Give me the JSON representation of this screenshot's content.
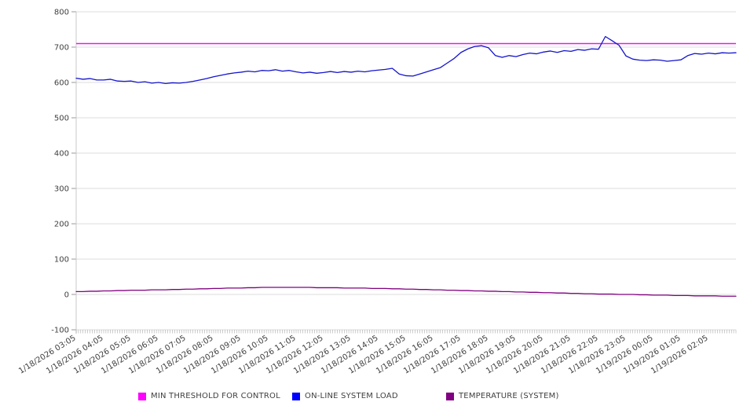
{
  "chart_data": {
    "type": "line",
    "title": "",
    "xlabel": "",
    "ylabel": "",
    "ylim": [
      -100,
      800
    ],
    "y_ticks": [
      800,
      700,
      600,
      500,
      400,
      300,
      200,
      100,
      0,
      -100
    ],
    "grid": "horizontal-only",
    "legend_position": "bottom-center",
    "x_minor_tick_count": 288,
    "x_labels": [
      "1/18/2026 03:05",
      "1/18/2026 04:05",
      "1/18/2026 05:05",
      "1/18/2026 06:05",
      "1/18/2026 07:05",
      "1/18/2026 08:05",
      "1/18/2026 09:05",
      "1/18/2026 10:05",
      "1/18/2026 11:05",
      "1/18/2026 12:05",
      "1/18/2026 13:05",
      "1/18/2026 14:05",
      "1/18/2026 15:05",
      "1/18/2026 16:05",
      "1/18/2026 17:05",
      "1/18/2026 18:05",
      "1/18/2026 19:05",
      "1/18/2026 20:05",
      "1/18/2026 21:05",
      "1/18/2026 22:05",
      "1/18/2026 23:05",
      "1/19/2026 00:05",
      "1/19/2026 01:05",
      "1/19/2026 02:05"
    ],
    "x_sample_interval_minutes": 15,
    "series": [
      {
        "name": "MIN THRESHOLD FOR CONTROL",
        "color": "#ee15ee",
        "swatch_color": "#ff00ff",
        "kind": "constant",
        "value": 710
      },
      {
        "name": "ON-LINE SYSTEM LOAD",
        "color": "#1414cd",
        "swatch_color": "#0000ff",
        "kind": "line",
        "values": [
          612,
          609,
          611,
          607,
          607,
          609,
          604,
          603,
          604,
          600,
          602,
          598,
          600,
          597,
          599,
          598,
          600,
          603,
          607,
          611,
          616,
          620,
          624,
          627,
          629,
          632,
          630,
          634,
          633,
          636,
          632,
          634,
          630,
          627,
          629,
          626,
          628,
          631,
          628,
          631,
          629,
          632,
          630,
          633,
          635,
          637,
          640,
          624,
          619,
          618,
          624,
          630,
          636,
          642,
          655,
          668,
          685,
          695,
          702,
          704,
          698,
          676,
          671,
          676,
          673,
          679,
          683,
          681,
          686,
          689,
          685,
          690,
          688,
          693,
          691,
          695,
          694,
          730,
          718,
          705,
          675,
          666,
          663,
          662,
          664,
          663,
          660,
          662,
          664,
          676,
          682,
          680,
          683,
          681,
          684,
          683,
          684
        ]
      },
      {
        "name": "TEMPERATURE (SYSTEM)",
        "color": "#800080",
        "swatch_color": "#800080",
        "kind": "line",
        "values": [
          8,
          8,
          9,
          9,
          10,
          10,
          11,
          11,
          12,
          12,
          12,
          13,
          13,
          13,
          14,
          14,
          15,
          15,
          16,
          16,
          17,
          17,
          18,
          18,
          18,
          19,
          19,
          20,
          20,
          20,
          20,
          20,
          20,
          20,
          20,
          19,
          19,
          19,
          19,
          18,
          18,
          18,
          18,
          17,
          17,
          17,
          16,
          16,
          15,
          15,
          14,
          14,
          13,
          13,
          12,
          12,
          11,
          11,
          10,
          10,
          9,
          9,
          8,
          8,
          7,
          7,
          6,
          6,
          5,
          5,
          4,
          4,
          3,
          3,
          2,
          2,
          1,
          1,
          1,
          0,
          0,
          0,
          -1,
          -1,
          -2,
          -2,
          -2,
          -3,
          -3,
          -3,
          -4,
          -4,
          -4,
          -4,
          -5,
          -5,
          -5
        ]
      }
    ],
    "colors": {
      "gridline": "#dedede",
      "axis_line": "#c8c8c8",
      "tick": "#999999",
      "label_text": "#404040"
    }
  }
}
